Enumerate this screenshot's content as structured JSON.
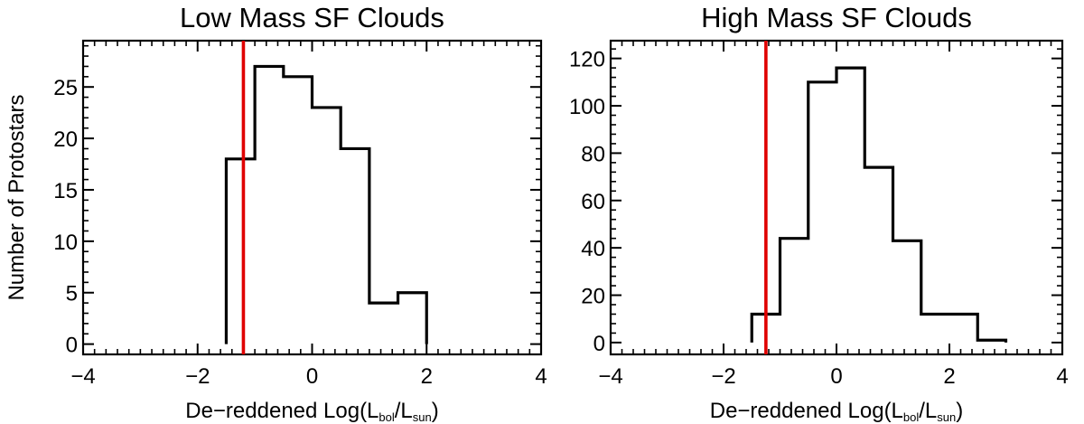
{
  "chart_data": [
    {
      "type": "histogram",
      "title": "Low Mass SF Clouds",
      "xlabel_parts": {
        "prefix": "De−reddened Log(L",
        "sub1": "bol",
        "mid": "/L",
        "sub2": "sun",
        "suffix": ")"
      },
      "ylabel": "Number of Protostars",
      "xlim": [
        -4,
        4
      ],
      "ylim": [
        -1,
        29.5
      ],
      "xticks": [
        -4,
        -2,
        0,
        2,
        4
      ],
      "xtick_labels": [
        "−4",
        "−2",
        "0",
        "2",
        "4"
      ],
      "yticks": [
        0,
        5,
        10,
        15,
        20,
        25
      ],
      "ytick_labels": [
        "0",
        "5",
        "10",
        "15",
        "20",
        "25"
      ],
      "bin_edges": [
        -1.5,
        -1.0,
        -0.5,
        0.0,
        0.5,
        1.0,
        1.5,
        2.0
      ],
      "values": [
        18,
        27,
        26,
        23,
        19,
        4,
        5
      ],
      "cutoff_line": {
        "x": -1.2,
        "color": "#e00000"
      },
      "line_color": "#000000"
    },
    {
      "type": "histogram",
      "title": "High Mass SF Clouds",
      "xlabel_parts": {
        "prefix": "De−reddened Log(L",
        "sub1": "bol",
        "mid": "/L",
        "sub2": "sun",
        "suffix": ")"
      },
      "ylabel": "",
      "xlim": [
        -4,
        4
      ],
      "ylim": [
        -5,
        127.5
      ],
      "xticks": [
        -4,
        -2,
        0,
        2,
        4
      ],
      "xtick_labels": [
        "−4",
        "−2",
        "0",
        "2",
        "4"
      ],
      "yticks": [
        0,
        20,
        40,
        60,
        80,
        100,
        120
      ],
      "ytick_labels": [
        "0",
        "20",
        "40",
        "60",
        "80",
        "100",
        "120"
      ],
      "bin_edges": [
        -1.5,
        -1.0,
        -0.5,
        0.0,
        0.5,
        1.0,
        1.5,
        2.0,
        2.5,
        3.0
      ],
      "values": [
        12,
        44,
        110,
        116,
        74,
        43,
        12,
        12,
        1
      ],
      "cutoff_line": {
        "x": -1.25,
        "color": "#e00000"
      },
      "line_color": "#000000"
    }
  ]
}
